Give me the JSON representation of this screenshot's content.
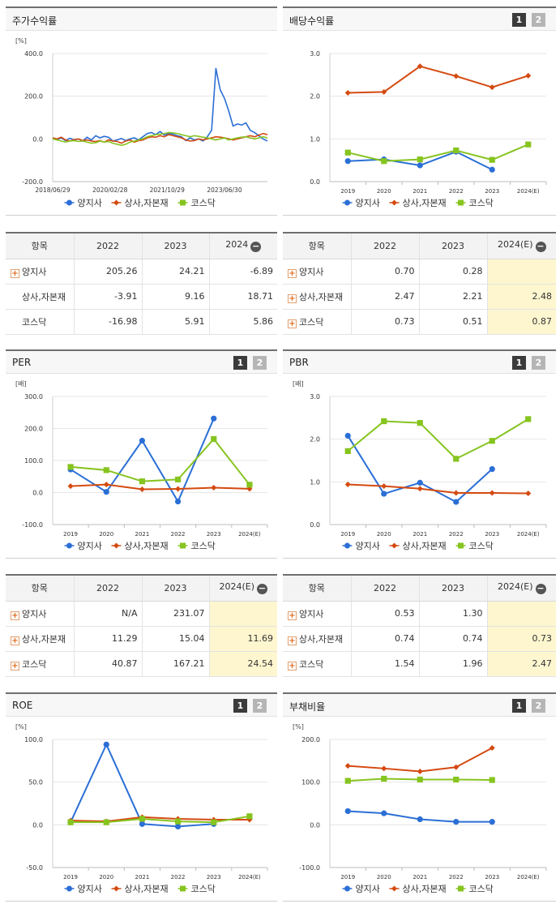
{
  "colors": {
    "series1": "#2b6fd6",
    "series2": "#d44a10",
    "series3": "#86c41f"
  },
  "legend": [
    "양지사",
    "상사,자본재",
    "코스닥"
  ],
  "panels": {
    "stock": {
      "title": "주가수익률",
      "unit": "[%]",
      "chart_data": {
        "type": "line",
        "title": "주가수익률",
        "ylabel": "[%]",
        "ylim": [
          -200,
          400
        ],
        "yticks": [
          "400.0",
          "200.0",
          "0.0",
          "-200.0"
        ],
        "xticks": [
          "2018/06/29",
          "2020/02/28",
          "2021/10/29",
          "2023/06/30"
        ],
        "xticks_pos": [
          0,
          0.267,
          0.533,
          0.8
        ],
        "series": [
          {
            "name": "양지사",
            "values": [
              2,
              -3,
              5,
              -8,
              3,
              -5,
              0,
              -10,
              8,
              -5,
              15,
              5,
              12,
              8,
              -10,
              -5,
              2,
              -8,
              0,
              5,
              -5,
              10,
              25,
              30,
              20,
              35,
              18,
              25,
              22,
              15,
              10,
              -8,
              5,
              -5,
              0,
              -10,
              10,
              40,
              330,
              230,
              190,
              130,
              60,
              70,
              65,
              75,
              40,
              30,
              15,
              0,
              -10
            ]
          },
          {
            "name": "상사,자본재",
            "values": [
              5,
              0,
              8,
              -5,
              -10,
              -3,
              0,
              -8,
              -5,
              -10,
              -12,
              -8,
              -15,
              -5,
              -10,
              -12,
              -20,
              -10,
              -5,
              -15,
              -8,
              -5,
              5,
              10,
              8,
              15,
              10,
              20,
              15,
              10,
              5,
              -5,
              -10,
              -8,
              0,
              -5,
              0,
              5,
              10,
              8,
              5,
              0,
              -5,
              0,
              5,
              10,
              15,
              10,
              18,
              25,
              20
            ]
          },
          {
            "name": "코스닥",
            "values": [
              0,
              -5,
              -10,
              -15,
              -10,
              -8,
              -12,
              -10,
              -15,
              -20,
              -18,
              -10,
              -15,
              -12,
              -20,
              -25,
              -30,
              -25,
              -15,
              -10,
              -5,
              0,
              10,
              15,
              20,
              22,
              25,
              30,
              28,
              25,
              20,
              15,
              10,
              15,
              12,
              8,
              5,
              0,
              -5,
              0,
              5,
              -5,
              0,
              5,
              8,
              10,
              5,
              0,
              5,
              10,
              5
            ]
          }
        ]
      }
    },
    "dividend": {
      "title": "배당수익률",
      "chart_data": {
        "type": "line",
        "title": "배당수익률",
        "ylim": [
          0,
          3
        ],
        "yticks": [
          "3.0",
          "2.0",
          "1.0",
          "0.0"
        ],
        "categories": [
          "2019",
          "2020",
          "2021",
          "2022",
          "2023",
          "2024(E)"
        ],
        "series": [
          {
            "name": "양지사",
            "values": [
              0.48,
              0.52,
              0.38,
              0.7,
              0.28,
              null
            ]
          },
          {
            "name": "상사,자본재",
            "values": [
              2.08,
              2.1,
              2.7,
              2.47,
              2.21,
              2.48
            ]
          },
          {
            "name": "코스닥",
            "values": [
              0.68,
              0.48,
              0.52,
              0.73,
              0.51,
              0.87
            ]
          }
        ]
      }
    },
    "per": {
      "title": "PER",
      "unit": "[배]",
      "chart_data": {
        "type": "line",
        "title": "PER",
        "ylabel": "[배]",
        "ylim": [
          -100,
          300
        ],
        "yticks": [
          "300.0",
          "200.0",
          "100.0",
          "0.0",
          "-100.0"
        ],
        "categories": [
          "2019",
          "2020",
          "2021",
          "2022",
          "2023",
          "2024(E)"
        ],
        "series": [
          {
            "name": "양지사",
            "values": [
              72,
              2,
              162,
              -28,
              231.07,
              null
            ]
          },
          {
            "name": "상사,자본재",
            "values": [
              20,
              25,
              10,
              11.29,
              15.04,
              11.69
            ]
          },
          {
            "name": "코스닥",
            "values": [
              80,
              70,
              35,
              40.87,
              167.21,
              24.54
            ]
          }
        ]
      }
    },
    "pbr": {
      "title": "PBR",
      "unit": "[배]",
      "chart_data": {
        "type": "line",
        "title": "PBR",
        "ylabel": "[배]",
        "ylim": [
          0,
          3
        ],
        "yticks": [
          "3.0",
          "2.0",
          "1.0",
          "0.0"
        ],
        "categories": [
          "2019",
          "2020",
          "2021",
          "2022",
          "2023",
          "2024(E)"
        ],
        "series": [
          {
            "name": "양지사",
            "values": [
              2.08,
              0.72,
              0.98,
              0.53,
              1.3,
              null
            ]
          },
          {
            "name": "상사,자본재",
            "values": [
              0.94,
              0.9,
              0.84,
              0.74,
              0.74,
              0.73
            ]
          },
          {
            "name": "코스닥",
            "values": [
              1.72,
              2.42,
              2.38,
              1.54,
              1.96,
              2.47
            ]
          }
        ]
      }
    },
    "roe": {
      "title": "ROE",
      "unit": "[%]",
      "chart_data": {
        "type": "line",
        "title": "ROE",
        "ylabel": "[%]",
        "ylim": [
          -50,
          100
        ],
        "yticks": [
          "100.0",
          "50.0",
          "0.0",
          "-50.0"
        ],
        "categories": [
          "2019",
          "2020",
          "2021",
          "2022",
          "2023",
          "2024(E)"
        ],
        "series": [
          {
            "name": "양지사",
            "values": [
              3,
              94,
              1,
              -2,
              1,
              null
            ]
          },
          {
            "name": "상사,자본재",
            "values": [
              5,
              4,
              9,
              7,
              6,
              6
            ]
          },
          {
            "name": "코스닥",
            "values": [
              3,
              3,
              7,
              4,
              3,
              10
            ]
          }
        ]
      }
    },
    "debt": {
      "title": "부채비율",
      "unit": "[%]",
      "chart_data": {
        "type": "line",
        "title": "부채비율",
        "ylabel": "[%]",
        "ylim": [
          -100,
          200
        ],
        "yticks": [
          "200.0",
          "100.0",
          "0.0",
          "-100.0"
        ],
        "categories": [
          "2019",
          "2020",
          "2021",
          "2022",
          "2023",
          "2024(E)"
        ],
        "series": [
          {
            "name": "양지사",
            "values": [
              32,
              27,
              13,
              7,
              7,
              null
            ]
          },
          {
            "name": "상사,자본재",
            "values": [
              138,
              132,
              125,
              135,
              180,
              null
            ]
          },
          {
            "name": "코스닥",
            "values": [
              103,
              108,
              106,
              106,
              105,
              null
            ]
          }
        ]
      }
    }
  },
  "tables": {
    "stock": {
      "headers": [
        "항목",
        "2022",
        "2023",
        "2024"
      ],
      "rows": [
        {
          "label": "양지사",
          "values": [
            "205.26",
            "24.21",
            "-6.89"
          ]
        },
        {
          "label": "상사,자본재",
          "values": [
            "-3.91",
            "9.16",
            "18.71"
          ]
        },
        {
          "label": "코스닥",
          "values": [
            "-16.98",
            "5.91",
            "5.86"
          ]
        }
      ]
    },
    "dividend": {
      "headers": [
        "항목",
        "2022",
        "2023",
        "2024(E)"
      ],
      "rows": [
        {
          "label": "양지사",
          "values": [
            "0.70",
            "0.28",
            ""
          ]
        },
        {
          "label": "상사,자본재",
          "values": [
            "2.47",
            "2.21",
            "2.48"
          ]
        },
        {
          "label": "코스닥",
          "values": [
            "0.73",
            "0.51",
            "0.87"
          ]
        }
      ]
    },
    "per": {
      "headers": [
        "항목",
        "2022",
        "2023",
        "2024(E)"
      ],
      "rows": [
        {
          "label": "양지사",
          "values": [
            "N/A",
            "231.07",
            ""
          ]
        },
        {
          "label": "상사,자본재",
          "values": [
            "11.29",
            "15.04",
            "11.69"
          ]
        },
        {
          "label": "코스닥",
          "values": [
            "40.87",
            "167.21",
            "24.54"
          ]
        }
      ]
    },
    "pbr": {
      "headers": [
        "항목",
        "2022",
        "2023",
        "2024(E)"
      ],
      "rows": [
        {
          "label": "양지사",
          "values": [
            "0.53",
            "1.30",
            ""
          ]
        },
        {
          "label": "상사,자본재",
          "values": [
            "0.74",
            "0.74",
            "0.73"
          ]
        },
        {
          "label": "코스닥",
          "values": [
            "1.54",
            "1.96",
            "2.47"
          ]
        }
      ]
    }
  },
  "buttons": {
    "b1": "1",
    "b2": "2"
  }
}
